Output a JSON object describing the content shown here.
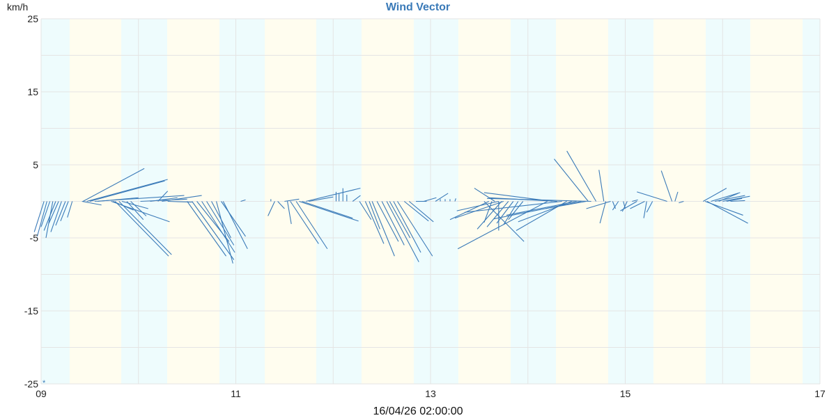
{
  "chart_data": {
    "type": "vector",
    "title": "Wind Vector",
    "ylabel": "km/h",
    "xlabel": "16/04/26 02:00:00",
    "xlim": [
      9,
      17
    ],
    "ylim": [
      -25,
      25
    ],
    "x_ticks": [
      "09",
      "11",
      "13",
      "15",
      "17"
    ],
    "x_tick_values": [
      9,
      11,
      13,
      15,
      17
    ],
    "y_ticks": [
      "25",
      "15",
      "5",
      "-5",
      "-15",
      "-25"
    ],
    "y_tick_values": [
      25,
      15,
      5,
      -5,
      -15,
      -25
    ],
    "y_gridlines": [
      25,
      20,
      15,
      10,
      5,
      0,
      -5,
      -10,
      -15,
      -20,
      -25
    ],
    "x_gridlines": [
      9,
      10,
      11,
      12,
      13,
      14,
      15,
      16,
      17
    ],
    "grid": true,
    "colors": {
      "vector": "#3a7ab8",
      "band_night": "#eefcfd",
      "band_day": "#fffdef",
      "grid": "#e4e4e4",
      "title": "#3a7ab8"
    },
    "bands": [
      {
        "from": 9.0,
        "to": 9.293,
        "type": "night"
      },
      {
        "from": 9.293,
        "to": 9.823,
        "type": "day"
      },
      {
        "from": 9.823,
        "to": 10.295,
        "type": "night"
      },
      {
        "from": 10.295,
        "to": 10.832,
        "type": "day"
      },
      {
        "from": 10.832,
        "to": 11.297,
        "type": "night"
      },
      {
        "from": 11.297,
        "to": 11.826,
        "type": "day"
      },
      {
        "from": 11.826,
        "to": 12.291,
        "type": "night"
      },
      {
        "from": 12.291,
        "to": 12.828,
        "type": "day"
      },
      {
        "from": 12.828,
        "to": 13.286,
        "type": "night"
      },
      {
        "from": 13.286,
        "to": 13.823,
        "type": "day"
      },
      {
        "from": 13.823,
        "to": 14.288,
        "type": "night"
      },
      {
        "from": 14.288,
        "to": 14.825,
        "type": "day"
      },
      {
        "from": 14.825,
        "to": 15.29,
        "type": "night"
      },
      {
        "from": 15.29,
        "to": 15.826,
        "type": "day"
      },
      {
        "from": 15.826,
        "to": 16.284,
        "type": "night"
      },
      {
        "from": 16.284,
        "to": 16.821,
        "type": "day"
      },
      {
        "from": 16.821,
        "to": 17.0,
        "type": "night"
      }
    ],
    "vectors_note": "each vector: [x_start, x_end, y_end] with start on y=0",
    "vectors": [
      [
        9.03,
        8.93,
        -4.2
      ],
      [
        9.06,
        8.96,
        -4.8
      ],
      [
        9.09,
        9.0,
        -3.5
      ],
      [
        9.12,
        9.05,
        -5.0
      ],
      [
        9.15,
        9.03,
        -4.0
      ],
      [
        9.18,
        9.08,
        -3.0
      ],
      [
        9.21,
        9.1,
        -4.2
      ],
      [
        9.25,
        9.15,
        -3.3
      ],
      [
        9.28,
        9.2,
        -2.7
      ],
      [
        9.32,
        9.27,
        -2.2
      ],
      [
        9.42,
        9.62,
        -0.5
      ],
      [
        9.43,
        10.06,
        4.5
      ],
      [
        9.47,
        10.3,
        3.0
      ],
      [
        9.5,
        10.27,
        2.8
      ],
      [
        9.55,
        10.47,
        0.8
      ],
      [
        9.58,
        10.0,
        0.5
      ],
      [
        9.72,
        10.32,
        -2.8
      ],
      [
        9.74,
        9.95,
        -1.2
      ],
      [
        9.76,
        10.31,
        -7.5
      ],
      [
        9.8,
        10.34,
        -7.3
      ],
      [
        9.83,
        10.1,
        -1.0
      ],
      [
        9.88,
        10.05,
        -2.5
      ],
      [
        9.92,
        10.08,
        -2.0
      ],
      [
        10.02,
        10.5,
        0.3
      ],
      [
        10.12,
        10.4,
        0.5
      ],
      [
        10.2,
        10.3,
        1.4
      ],
      [
        10.24,
        10.65,
        0.8
      ],
      [
        10.3,
        10.55,
        -0.1
      ],
      [
        10.5,
        10.9,
        -7.5
      ],
      [
        10.55,
        10.98,
        -8.0
      ],
      [
        10.6,
        10.93,
        -5.5
      ],
      [
        10.65,
        10.99,
        -7.0
      ],
      [
        10.7,
        10.98,
        -6.0
      ],
      [
        10.75,
        10.95,
        -5.0
      ],
      [
        10.8,
        10.97,
        -8.5
      ],
      [
        10.85,
        11.1,
        -4.8
      ],
      [
        10.87,
        11.12,
        -6.5
      ],
      [
        11.05,
        11.1,
        0.2
      ],
      [
        11.36,
        11.36,
        0.3
      ],
      [
        11.4,
        11.33,
        -2.0
      ],
      [
        11.43,
        11.5,
        -1.0
      ],
      [
        11.5,
        11.65,
        0.3
      ],
      [
        11.53,
        11.57,
        -3.1
      ],
      [
        11.56,
        11.85,
        -5.8
      ],
      [
        11.62,
        11.94,
        -6.5
      ],
      [
        11.65,
        12.26,
        -2.7
      ],
      [
        11.68,
        12.2,
        -2.3
      ],
      [
        11.72,
        12.28,
        1.8
      ],
      [
        11.75,
        12.0,
        0.6
      ],
      [
        12.03,
        12.03,
        1.3
      ],
      [
        12.06,
        12.06,
        1.1
      ],
      [
        12.1,
        12.1,
        1.8
      ],
      [
        12.14,
        12.14,
        0.9
      ],
      [
        12.2,
        12.28,
        0.8
      ],
      [
        12.27,
        12.39,
        -2.5
      ],
      [
        12.33,
        12.52,
        -5.8
      ],
      [
        12.37,
        12.48,
        -3.8
      ],
      [
        12.4,
        12.63,
        -7.5
      ],
      [
        12.45,
        12.67,
        -5.5
      ],
      [
        12.5,
        12.73,
        -6.0
      ],
      [
        12.55,
        12.88,
        -8.3
      ],
      [
        12.58,
        12.79,
        -5.0
      ],
      [
        12.62,
        12.9,
        -7.0
      ],
      [
        12.66,
        13.02,
        -7.5
      ],
      [
        12.73,
        12.98,
        -2.7
      ],
      [
        12.78,
        13.03,
        -2.8
      ],
      [
        12.85,
        12.96,
        0.0
      ],
      [
        12.93,
        13.06,
        0.5
      ],
      [
        13.05,
        13.18,
        1.1
      ],
      [
        13.1,
        13.1,
        0.3
      ],
      [
        13.15,
        13.15,
        0.3
      ],
      [
        13.2,
        13.2,
        0.3
      ],
      [
        13.25,
        13.26,
        0.4
      ],
      [
        13.55,
        13.96,
        -5.5
      ],
      [
        13.6,
        13.2,
        -2.5
      ],
      [
        13.63,
        13.55,
        -2.9
      ],
      [
        13.66,
        13.45,
        1.8
      ],
      [
        13.7,
        13.27,
        -1.3
      ],
      [
        13.7,
        13.7,
        -4.0
      ],
      [
        13.73,
        13.48,
        -3.8
      ],
      [
        13.75,
        13.25,
        -2.3
      ],
      [
        13.8,
        13.58,
        -3.5
      ],
      [
        13.85,
        13.68,
        -3.0
      ],
      [
        13.9,
        13.75,
        -3.2
      ],
      [
        13.95,
        13.8,
        -2.5
      ],
      [
        14.2,
        13.28,
        -6.5
      ],
      [
        14.25,
        13.55,
        1.2
      ],
      [
        14.3,
        13.6,
        0.5
      ],
      [
        14.35,
        13.35,
        -1.5
      ],
      [
        14.4,
        13.88,
        -4.0
      ],
      [
        14.45,
        13.9,
        -2.8
      ],
      [
        14.5,
        13.78,
        -1.9
      ],
      [
        14.55,
        13.65,
        -2.4
      ],
      [
        14.6,
        14.18,
        -1.0
      ],
      [
        14.65,
        13.58,
        0.4
      ],
      [
        14.62,
        14.27,
        5.8
      ],
      [
        14.7,
        14.4,
        6.9
      ],
      [
        14.78,
        14.73,
        4.3
      ],
      [
        14.85,
        14.6,
        -1.0
      ],
      [
        14.8,
        14.74,
        -3.0
      ],
      [
        14.87,
        14.9,
        -1.0
      ],
      [
        14.93,
        14.87,
        -1.2
      ],
      [
        14.98,
        15.0,
        -1.0
      ],
      [
        15.02,
        14.97,
        -1.4
      ],
      [
        15.07,
        15.13,
        0.2
      ],
      [
        15.12,
        14.95,
        -1.3
      ],
      [
        15.2,
        15.05,
        -1.0
      ],
      [
        15.22,
        15.19,
        -2.3
      ],
      [
        15.28,
        15.22,
        -1.5
      ],
      [
        15.43,
        15.12,
        1.3
      ],
      [
        15.48,
        15.37,
        4.2
      ],
      [
        15.51,
        15.54,
        1.3
      ],
      [
        15.6,
        15.55,
        -0.2
      ],
      [
        15.8,
        16.04,
        1.8
      ],
      [
        15.84,
        16.26,
        -3.0
      ],
      [
        15.82,
        16.21,
        -1.9
      ],
      [
        15.88,
        16.18,
        1.2
      ],
      [
        15.92,
        16.23,
        0.8
      ],
      [
        15.96,
        16.16,
        1.1
      ],
      [
        16.0,
        16.28,
        0.7
      ],
      [
        16.04,
        16.2,
        0.4
      ],
      [
        16.08,
        16.23,
        0.1
      ]
    ],
    "marker": {
      "x": 9.03,
      "y": -25,
      "symbol": "*"
    }
  },
  "header": {
    "title": "Wind Vector",
    "unit_label": "km/h"
  },
  "footer": {
    "timestamp": "16/04/26 02:00:00"
  }
}
